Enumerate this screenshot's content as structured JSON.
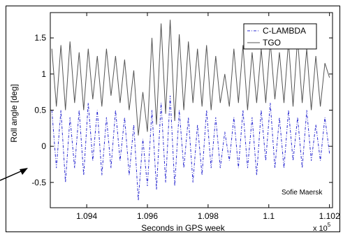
{
  "chart_data": {
    "type": "line",
    "xlabel": "Seconds in GPS week",
    "ylabel": "Roll angle  [deg]",
    "x_multiplier": "x 10",
    "x_multiplier_exponent": "5",
    "xlim": [
      109280,
      110210
    ],
    "ylim": [
      -0.85,
      1.85
    ],
    "xticks": [
      109400,
      109600,
      109800,
      110000,
      110200
    ],
    "xtick_labels": [
      "1.094",
      "1.096",
      "1.098",
      "1.1",
      "1.102"
    ],
    "yticks": [
      -0.5,
      0,
      0.5,
      1,
      1.5
    ],
    "ytick_labels": [
      "-0.5",
      "0",
      "0.5",
      "1",
      "1.5"
    ],
    "legend_position": "top-right",
    "annotation": "Sofie Maersk",
    "series": [
      {
        "name": "C-LAMBDA",
        "style": "dash-dot",
        "color": "#2b2bd0",
        "x": [
          109285,
          109300,
          109315,
          109330,
          109345,
          109360,
          109375,
          109390,
          109405,
          109420,
          109435,
          109450,
          109465,
          109480,
          109495,
          109510,
          109525,
          109540,
          109555,
          109570,
          109585,
          109600,
          109615,
          109630,
          109645,
          109660,
          109675,
          109690,
          109705,
          109720,
          109735,
          109750,
          109765,
          109780,
          109795,
          109810,
          109825,
          109840,
          109855,
          109870,
          109885,
          109900,
          109915,
          109930,
          109945,
          109960,
          109975,
          109990,
          110005,
          110020,
          110035,
          110050,
          110065,
          110080,
          110095,
          110110,
          110125,
          110140,
          110155,
          110170,
          110185,
          110200
        ],
        "y": [
          0.5,
          -0.3,
          0.5,
          -0.5,
          0.4,
          -0.3,
          0.5,
          -0.4,
          0.6,
          -0.2,
          0.5,
          -0.4,
          0.4,
          -0.3,
          0.5,
          -0.2,
          0.4,
          -0.4,
          0.3,
          -0.75,
          0.1,
          -0.55,
          0.5,
          -0.6,
          0.6,
          -0.5,
          0.7,
          -0.55,
          0.5,
          -0.3,
          0.4,
          -0.5,
          0.3,
          -0.4,
          0.5,
          -0.3,
          0.4,
          -0.3,
          0.2,
          -0.2,
          0.4,
          -0.3,
          0.5,
          -0.3,
          0.4,
          -0.4,
          0.5,
          -0.2,
          0.6,
          -0.3,
          0.4,
          -0.3,
          0.5,
          -0.2,
          0.4,
          -0.3,
          0.5,
          -0.2,
          0.3,
          -0.2,
          0.4,
          -0.1
        ]
      },
      {
        "name": "TGO",
        "style": "solid",
        "color": "#555555",
        "x": [
          109285,
          109300,
          109315,
          109330,
          109345,
          109360,
          109375,
          109390,
          109405,
          109420,
          109435,
          109450,
          109465,
          109480,
          109495,
          109510,
          109525,
          109540,
          109555,
          109570,
          109585,
          109600,
          109615,
          109630,
          109645,
          109660,
          109675,
          109690,
          109705,
          109720,
          109735,
          109750,
          109765,
          109780,
          109795,
          109810,
          109825,
          109840,
          109855,
          109870,
          109885,
          109900,
          109915,
          109930,
          109945,
          109960,
          109975,
          109990,
          110005,
          110020,
          110035,
          110050,
          110065,
          110080,
          110095,
          110110,
          110125,
          110140,
          110155,
          110170,
          110185,
          110200
        ],
        "y": [
          1.35,
          0.55,
          1.4,
          0.5,
          1.45,
          0.6,
          1.3,
          0.5,
          1.35,
          0.65,
          1.25,
          0.55,
          1.35,
          0.7,
          1.25,
          0.6,
          1.2,
          0.5,
          1.05,
          0.15,
          0.75,
          0.2,
          1.5,
          0.3,
          1.7,
          0.45,
          1.75,
          0.35,
          1.55,
          0.5,
          1.45,
          0.6,
          1.35,
          0.55,
          1.4,
          0.5,
          1.25,
          0.6,
          1.0,
          0.55,
          1.35,
          0.6,
          1.4,
          0.5,
          1.3,
          0.6,
          1.35,
          0.6,
          1.45,
          0.65,
          1.3,
          0.6,
          1.45,
          0.55,
          1.5,
          0.6,
          1.35,
          0.5,
          1.25,
          0.55,
          1.15,
          0.95
        ]
      }
    ]
  }
}
